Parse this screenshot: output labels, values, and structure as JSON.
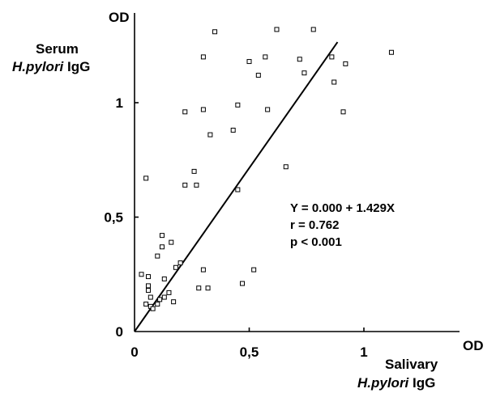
{
  "chart_data": {
    "type": "scatter",
    "y_unit": "OD",
    "y_label_line1": "Serum",
    "y_label_line2_italic": "H.pylori",
    "y_label_line2_rest": " IgG",
    "x_unit": "OD",
    "x_label_line1": "Salivary",
    "x_label_line2_italic": "H.pylori",
    "x_label_line2_rest": " IgG",
    "xlim": [
      0,
      1.4
    ],
    "ylim": [
      0,
      1.4
    ],
    "xticks": [
      0,
      0.5,
      1
    ],
    "yticks": [
      0,
      0.5,
      1
    ],
    "xtick_labels": [
      "0",
      "0,5",
      "1"
    ],
    "ytick_labels": [
      "0",
      "0,5",
      "1"
    ],
    "grid": false,
    "regression": {
      "intercept": 0.0,
      "slope": 1.429
    },
    "annotation": [
      "Y = 0.000 + 1.429X",
      "r = 0.762",
      "p < 0.001"
    ],
    "points": [
      [
        0.62,
        1.32
      ],
      [
        0.35,
        1.31
      ],
      [
        0.78,
        1.32
      ],
      [
        1.12,
        1.22
      ],
      [
        0.3,
        1.2
      ],
      [
        0.5,
        1.18
      ],
      [
        0.57,
        1.2
      ],
      [
        0.72,
        1.19
      ],
      [
        0.86,
        1.2
      ],
      [
        0.92,
        1.17
      ],
      [
        0.54,
        1.12
      ],
      [
        0.74,
        1.13
      ],
      [
        0.87,
        1.09
      ],
      [
        0.22,
        0.96
      ],
      [
        0.3,
        0.97
      ],
      [
        0.45,
        0.99
      ],
      [
        0.58,
        0.97
      ],
      [
        0.91,
        0.96
      ],
      [
        0.33,
        0.86
      ],
      [
        0.43,
        0.88
      ],
      [
        0.26,
        0.7
      ],
      [
        0.66,
        0.72
      ],
      [
        0.05,
        0.67
      ],
      [
        0.22,
        0.64
      ],
      [
        0.27,
        0.64
      ],
      [
        0.45,
        0.62
      ],
      [
        0.12,
        0.42
      ],
      [
        0.16,
        0.39
      ],
      [
        0.12,
        0.37
      ],
      [
        0.1,
        0.33
      ],
      [
        0.2,
        0.3
      ],
      [
        0.18,
        0.28
      ],
      [
        0.3,
        0.27
      ],
      [
        0.52,
        0.27
      ],
      [
        0.03,
        0.25
      ],
      [
        0.06,
        0.24
      ],
      [
        0.13,
        0.23
      ],
      [
        0.06,
        0.2
      ],
      [
        0.06,
        0.18
      ],
      [
        0.28,
        0.19
      ],
      [
        0.32,
        0.19
      ],
      [
        0.47,
        0.21
      ],
      [
        0.15,
        0.17
      ],
      [
        0.07,
        0.15
      ],
      [
        0.13,
        0.15
      ],
      [
        0.11,
        0.14
      ],
      [
        0.17,
        0.13
      ],
      [
        0.1,
        0.12
      ],
      [
        0.05,
        0.12
      ],
      [
        0.07,
        0.11
      ],
      [
        0.08,
        0.1
      ]
    ]
  }
}
